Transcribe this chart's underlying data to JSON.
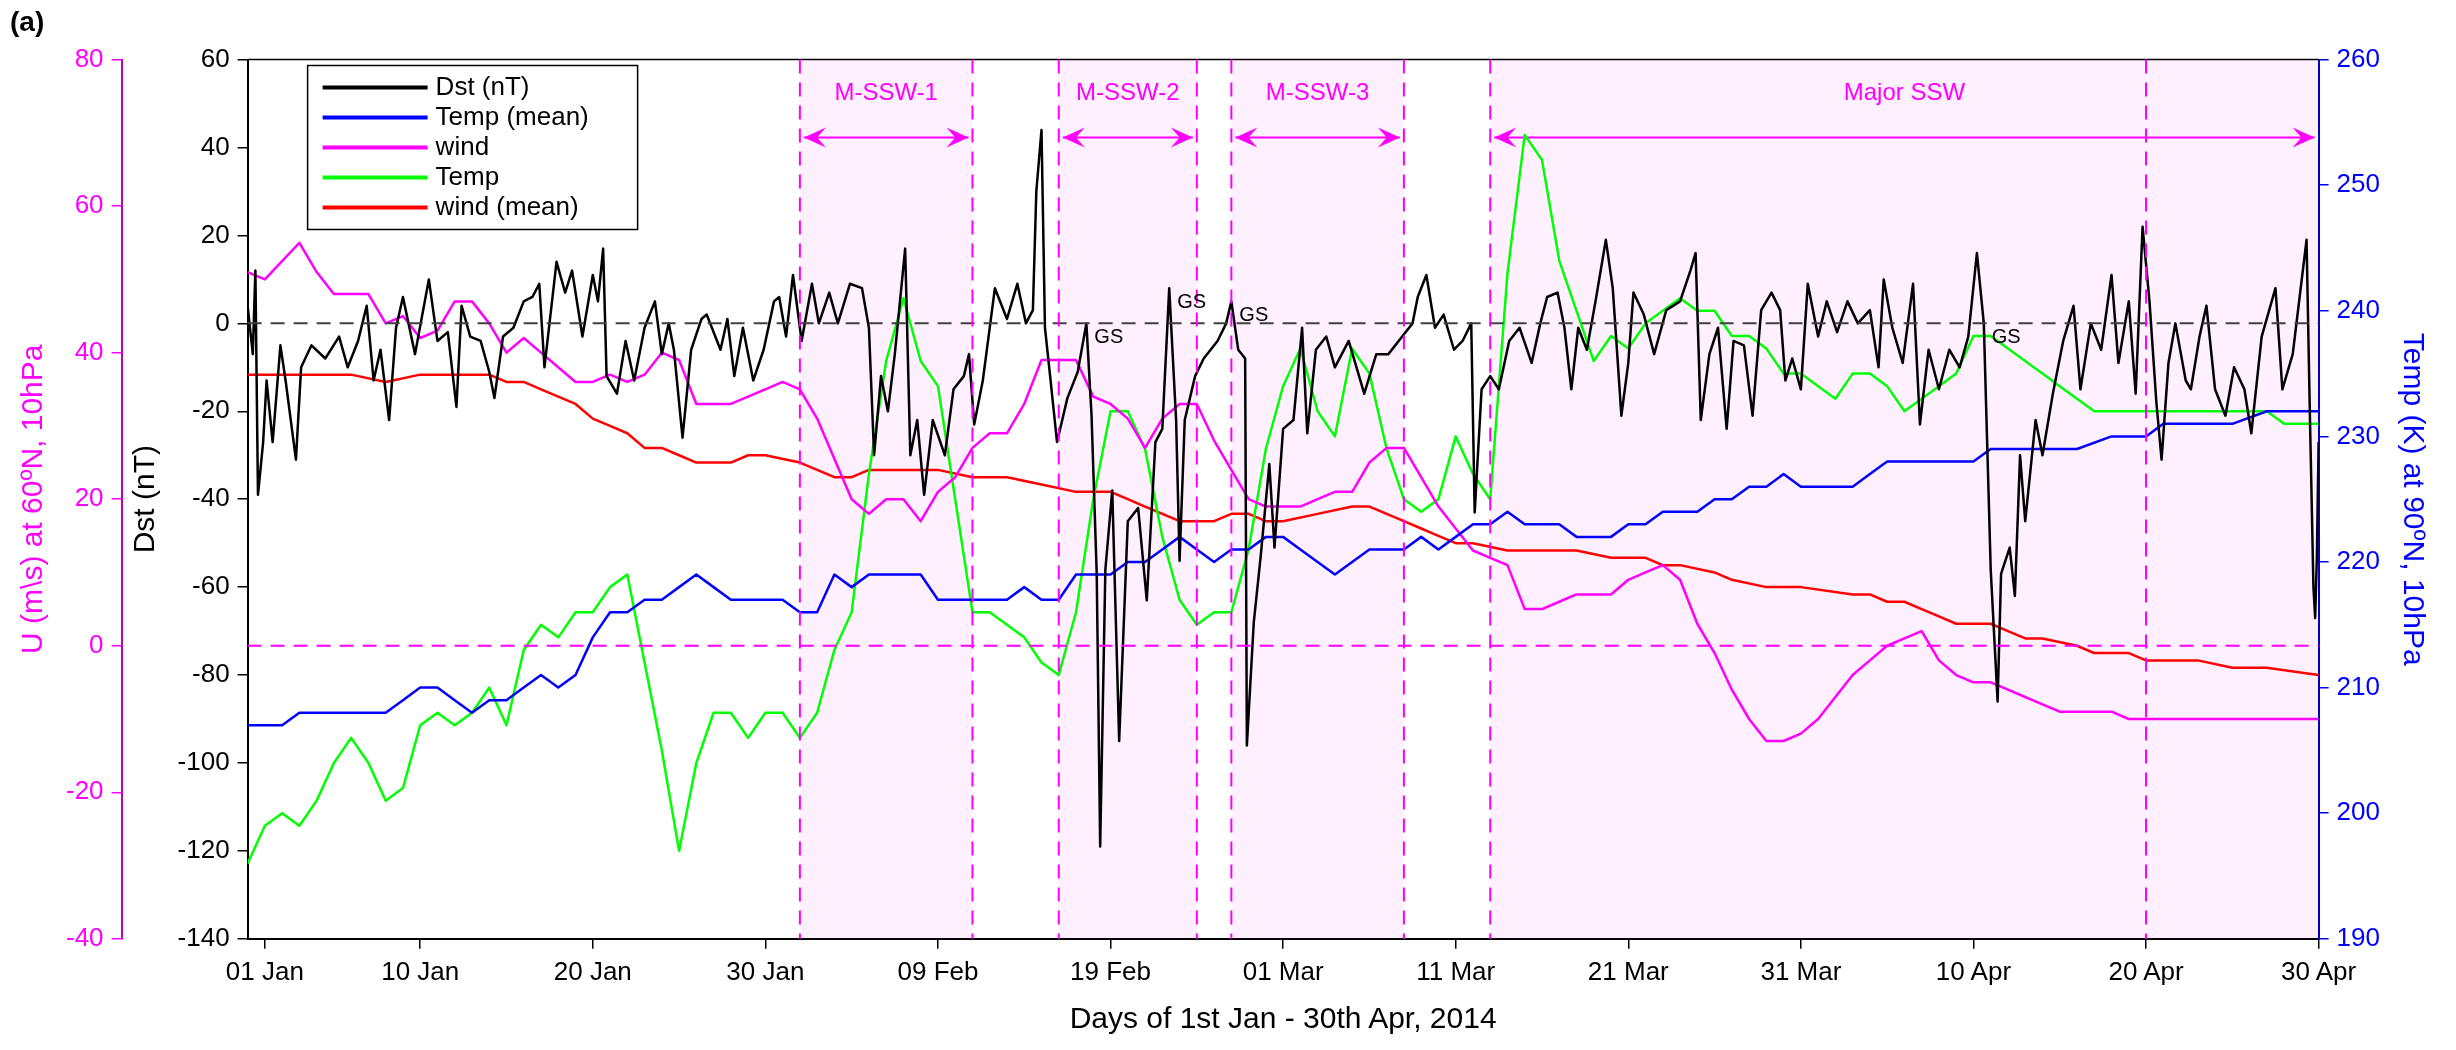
{
  "chart_data": {
    "type": "line",
    "title": "(a)",
    "xlabel": "Days of 1st Jan - 30th Apr, 2014",
    "ylabel": "Dst (nT)",
    "y2label": "Temp (K) at 90ºN, 10hPa",
    "y3label": "U (m\\s) at 60ºN, 10hPa",
    "xlim": [
      "2013-12-31",
      "2014-04-30"
    ],
    "xticks": [
      {
        "value": "2014-01-01",
        "label": "01 Jan"
      },
      {
        "value": "2014-01-10",
        "label": "10 Jan"
      },
      {
        "value": "2014-01-20",
        "label": "20 Jan"
      },
      {
        "value": "2014-01-30",
        "label": "30 Jan"
      },
      {
        "value": "2014-02-09",
        "label": "09 Feb"
      },
      {
        "value": "2014-02-19",
        "label": "19 Feb"
      },
      {
        "value": "2014-03-01",
        "label": "01 Mar"
      },
      {
        "value": "2014-03-11",
        "label": "11 Mar"
      },
      {
        "value": "2014-03-21",
        "label": "21 Mar"
      },
      {
        "value": "2014-03-31",
        "label": "31 Mar"
      },
      {
        "value": "2014-04-10",
        "label": "10 Apr"
      },
      {
        "value": "2014-04-20",
        "label": "20 Apr"
      },
      {
        "value": "2014-04-30",
        "label": "30 Apr"
      }
    ],
    "ylim": [
      -140,
      60
    ],
    "yticks": [
      -140,
      -120,
      -100,
      -80,
      -60,
      -40,
      -20,
      0,
      20,
      40,
      60
    ],
    "y2lim": [
      190,
      260
    ],
    "y2ticks": [
      190,
      200,
      210,
      220,
      230,
      240,
      250,
      260
    ],
    "y3lim": [
      -40,
      80
    ],
    "y3ticks": [
      -40,
      -20,
      0,
      20,
      40,
      60,
      80
    ],
    "legend": "top left",
    "x": [
      "2013-12-31",
      "2014-01-01",
      "2014-01-02",
      "2014-01-03",
      "2014-01-04",
      "2014-01-05",
      "2014-01-06",
      "2014-01-07",
      "2014-01-08",
      "2014-01-09",
      "2014-01-10",
      "2014-01-11",
      "2014-01-12",
      "2014-01-13",
      "2014-01-14",
      "2014-01-15",
      "2014-01-16",
      "2014-01-17",
      "2014-01-18",
      "2014-01-19",
      "2014-01-20",
      "2014-01-21",
      "2014-01-22",
      "2014-01-23",
      "2014-01-24",
      "2014-01-25",
      "2014-01-26",
      "2014-01-27",
      "2014-01-28",
      "2014-01-29",
      "2014-01-30",
      "2014-01-31",
      "2014-02-01",
      "2014-02-02",
      "2014-02-03",
      "2014-02-04",
      "2014-02-05",
      "2014-02-06",
      "2014-02-07",
      "2014-02-08",
      "2014-02-09",
      "2014-02-10",
      "2014-02-11",
      "2014-02-12",
      "2014-02-13",
      "2014-02-14",
      "2014-02-15",
      "2014-02-16",
      "2014-02-17",
      "2014-02-18",
      "2014-02-19",
      "2014-02-20",
      "2014-02-21",
      "2014-02-22",
      "2014-02-23",
      "2014-02-24",
      "2014-02-25",
      "2014-02-26",
      "2014-02-27",
      "2014-02-28",
      "2014-03-01",
      "2014-03-02",
      "2014-03-03",
      "2014-03-04",
      "2014-03-05",
      "2014-03-06",
      "2014-03-07",
      "2014-03-08",
      "2014-03-09",
      "2014-03-10",
      "2014-03-11",
      "2014-03-12",
      "2014-03-13",
      "2014-03-14",
      "2014-03-15",
      "2014-03-16",
      "2014-03-17",
      "2014-03-18",
      "2014-03-19",
      "2014-03-20",
      "2014-03-21",
      "2014-03-22",
      "2014-03-23",
      "2014-03-24",
      "2014-03-25",
      "2014-03-26",
      "2014-03-27",
      "2014-03-28",
      "2014-03-29",
      "2014-03-30",
      "2014-03-31",
      "2014-04-01",
      "2014-04-02",
      "2014-04-03",
      "2014-04-04",
      "2014-04-05",
      "2014-04-06",
      "2014-04-07",
      "2014-04-08",
      "2014-04-09",
      "2014-04-10",
      "2014-04-11",
      "2014-04-12",
      "2014-04-13",
      "2014-04-14",
      "2014-04-15",
      "2014-04-16",
      "2014-04-17",
      "2014-04-18",
      "2014-04-19",
      "2014-04-20",
      "2014-04-21",
      "2014-04-22",
      "2014-04-23",
      "2014-04-24",
      "2014-04-25",
      "2014-04-26",
      "2014-04-27",
      "2014-04-28",
      "2014-04-29",
      "2014-04-30"
    ],
    "series": [
      {
        "name": "Dst (nT)",
        "color": "#000000",
        "axis": "y",
        "x": [
          "2013-12-31",
          "2013-12-31T07:12",
          "2013-12-31T10:48",
          "2013-12-31T14:24",
          "2013-12-31T21:36",
          "2014-01-01T02:24",
          "2014-01-01T10:48",
          "2014-01-01T21:36",
          "2014-01-02T04:48",
          "2014-01-02T19:12",
          "2014-01-03T02:24",
          "2014-01-03T16:48",
          "2014-01-04T12:00",
          "2014-01-05T07:12",
          "2014-01-05T19:12",
          "2014-01-06T09:36",
          "2014-01-06T21:36",
          "2014-01-07T07:12",
          "2014-01-07T16:48",
          "2014-01-08T04:48",
          "2014-01-08T14:24",
          "2014-01-09",
          "2014-01-09T16:48",
          "2014-01-10T12:00",
          "2014-01-11",
          "2014-01-11T14:24",
          "2014-01-12T02:24",
          "2014-01-12T09:36",
          "2014-01-12T21:36",
          "2014-01-13T12:00",
          "2014-01-14",
          "2014-01-14T07:12",
          "2014-01-14T19:12",
          "2014-01-15T09:36",
          "2014-01-16",
          "2014-01-16T12:00",
          "2014-01-16T21:36",
          "2014-01-17T04:48",
          "2014-01-17T21:36",
          "2014-01-18T09:36",
          "2014-01-18T19:12",
          "2014-01-19T09:36",
          "2014-01-20",
          "2014-01-20T07:12",
          "2014-01-20T14:24",
          "2014-01-20T19:12",
          "2014-01-21T09:36",
          "2014-01-21T21:36",
          "2014-01-22T09:36",
          "2014-01-23",
          "2014-01-23T14:24",
          "2014-01-24",
          "2014-01-24T09:36",
          "2014-01-24T16:48",
          "2014-01-25T04:48",
          "2014-01-25T16:48",
          "2014-01-26T07:12",
          "2014-01-26T14:24",
          "2014-01-27T09:36",
          "2014-01-27T19:12",
          "2014-01-28T04:48",
          "2014-01-28T16:48",
          "2014-01-29T07:12",
          "2014-01-29T21:36",
          "2014-01-30T12:00",
          "2014-01-30T19:12",
          "2014-01-31T04:48",
          "2014-01-31T14:24",
          "2014-02-01T02:24",
          "2014-02-01T16:48",
          "2014-02-02T02:24",
          "2014-02-02T16:48",
          "2014-02-03T04:48",
          "2014-02-03T21:36",
          "2014-02-04T14:24",
          "2014-02-05",
          "2014-02-05T07:12",
          "2014-02-05T16:48",
          "2014-02-06T02:24",
          "2014-02-06T12:00",
          "2014-02-07T02:24",
          "2014-02-07T09:36",
          "2014-02-07T19:12",
          "2014-02-08T04:48",
          "2014-02-08T16:48",
          "2014-02-09T09:36",
          "2014-02-09T21:36",
          "2014-02-10T12:00",
          "2014-02-10T19:12",
          "2014-02-11T02:24",
          "2014-02-11T14:24",
          "2014-02-12T07:12",
          "2014-02-13",
          "2014-02-13T14:24",
          "2014-02-14T02:24",
          "2014-02-14T12:00",
          "2014-02-14T16:48",
          "2014-02-15",
          "2014-02-15T04:48",
          "2014-02-15T12:00",
          "2014-02-15T21:36",
          "2014-02-16T12:00",
          "2014-02-17T02:24",
          "2014-02-17T14:24",
          "2014-02-17T21:36",
          "2014-02-18T04:48",
          "2014-02-18T09:36",
          "2014-02-18T16:48",
          "2014-02-19T02:24",
          "2014-02-19T12:00",
          "2014-02-20",
          "2014-02-20T14:24",
          "2014-02-21T02:24",
          "2014-02-21T14:24",
          "2014-02-22",
          "2014-02-22T09:36",
          "2014-02-22T19:12",
          "2014-02-23",
          "2014-02-23T07:12",
          "2014-02-23T21:36",
          "2014-02-24T09:36",
          "2014-02-25T04:48",
          "2014-02-25T16:48",
          "2014-02-26",
          "2014-02-26T09:36",
          "2014-02-26T19:12",
          "2014-02-26T21:36",
          "2014-02-27T07:12",
          "2014-02-27T16:48",
          "2014-02-28T04:48",
          "2014-02-28T12:00",
          "2014-03-01",
          "2014-03-01T14:24",
          "2014-03-02T02:24",
          "2014-03-02T09:36",
          "2014-03-02T21:36",
          "2014-03-03T12:00",
          "2014-03-04",
          "2014-03-04T19:12",
          "2014-03-05T16:48",
          "2014-03-06T09:36",
          "2014-03-07T02:24",
          "2014-03-07T21:36",
          "2014-03-08T12:00",
          "2014-03-08T19:12",
          "2014-03-09T07:12",
          "2014-03-09T19:12",
          "2014-03-10T07:12",
          "2014-03-10T21:36",
          "2014-03-11T09:36",
          "2014-03-11T21:36",
          "2014-03-12T02:24",
          "2014-03-12T12:00",
          "2014-03-13",
          "2014-03-13T12:00",
          "2014-03-14T02:24",
          "2014-03-14T16:48",
          "2014-03-15T09:36",
          "2014-03-15T21:36",
          "2014-03-16T07:12",
          "2014-03-16T21:36",
          "2014-03-17T07:12",
          "2014-03-17T16:48",
          "2014-03-18T02:24",
          "2014-03-18T14:24",
          "2014-03-19T02:24",
          "2014-03-19T16:48",
          "2014-03-20T02:24",
          "2014-03-20T14:24",
          "2014-03-21",
          "2014-03-21T07:12",
          "2014-03-21T21:36",
          "2014-03-22T12:00",
          "2014-03-23T04:48",
          "2014-03-24",
          "2014-03-24T14:24",
          "2014-03-24T21:36",
          "2014-03-25T04:48",
          "2014-03-25T16:48",
          "2014-03-26T04:48",
          "2014-03-26T16:48",
          "2014-03-27T02:24",
          "2014-03-27T16:48",
          "2014-03-28T04:48",
          "2014-03-28T16:48",
          "2014-03-29T07:12",
          "2014-03-29T19:12",
          "2014-03-30T02:24",
          "2014-03-30T12:00",
          "2014-03-31",
          "2014-03-31T09:36",
          "2014-04-01",
          "2014-04-01T12:00",
          "2014-04-02T02:24",
          "2014-04-02T16:48",
          "2014-04-03T07:12",
          "2014-04-04",
          "2014-04-04T12:00",
          "2014-04-04T19:12",
          "2014-04-05T07:12",
          "2014-04-05T21:36",
          "2014-04-06T12:00",
          "2014-04-06T21:36",
          "2014-04-07T09:36",
          "2014-04-08",
          "2014-04-08T14:24",
          "2014-04-09T04:48",
          "2014-04-09T16:48",
          "2014-04-10T04:48",
          "2014-04-10T14:24",
          "2014-04-11",
          "2014-04-11T09:36",
          "2014-04-11T14:24",
          "2014-04-12T02:24",
          "2014-04-12T09:36",
          "2014-04-12T16:48",
          "2014-04-13",
          "2014-04-13T14:24",
          "2014-04-14",
          "2014-04-14T14:24",
          "2014-04-15T04:48",
          "2014-04-15T19:12",
          "2014-04-16T04:48",
          "2014-04-16T19:12",
          "2014-04-17T09:36",
          "2014-04-18",
          "2014-04-18T09:36",
          "2014-04-19",
          "2014-04-19T09:36",
          "2014-04-19T19:12",
          "2014-04-20T04:48",
          "2014-04-20T14:24",
          "2014-04-20T21:36",
          "2014-04-21T07:12",
          "2014-04-21T16:48",
          "2014-04-22T07:12",
          "2014-04-22T14:24",
          "2014-04-23T02:24",
          "2014-04-23T12:00",
          "2014-04-24",
          "2014-04-24T14:24",
          "2014-04-25T02:24",
          "2014-04-25T16:48",
          "2014-04-26T02:24",
          "2014-04-26T16:48",
          "2014-04-27T12:00",
          "2014-04-27T21:36",
          "2014-04-28T12:00",
          "2014-04-28T21:36",
          "2014-04-29T07:12",
          "2014-04-29T12:00",
          "2014-04-29T16:48",
          "2014-04-29T19:12",
          "2014-04-29T21:36",
          "2014-04-30"
        ],
        "values": [
          4,
          -7,
          12,
          -39,
          -27,
          -13,
          -27,
          -5,
          -13,
          -31,
          -10,
          -5,
          -8,
          -3,
          -10,
          -4,
          4,
          -13,
          -6,
          -22,
          -1,
          6,
          -7,
          10,
          -4,
          -2,
          -19,
          4,
          -3,
          -4,
          -11,
          -17,
          -3,
          -1,
          5,
          6,
          9,
          -10,
          14,
          7,
          12,
          -3,
          11,
          5,
          17,
          -12,
          -16,
          -4,
          -13,
          -1,
          5,
          -7,
          0,
          -6,
          -26,
          -6,
          1,
          2,
          -6,
          1,
          -12,
          -1,
          -13,
          -6,
          5,
          6,
          -3,
          11,
          -4,
          9,
          0,
          7,
          0,
          9,
          8,
          -1,
          -30,
          -12,
          -20,
          -7,
          17,
          -30,
          -22,
          -39,
          -22,
          -30,
          -15,
          -12,
          -7,
          -23,
          -13,
          8,
          1,
          9,
          0,
          3,
          30,
          44,
          -1,
          -12,
          -27,
          -17,
          -11,
          0,
          -21,
          -57,
          -119,
          -56,
          -38,
          -95,
          -45,
          -42,
          -63,
          -27,
          -24,
          8,
          -22,
          -54,
          -22,
          -12,
          -8,
          -4,
          0,
          5,
          -6,
          -8,
          -96,
          -68,
          -53,
          -32,
          -51,
          -24,
          -22,
          -1,
          -25,
          -6,
          -3,
          -10,
          -4,
          -16,
          -7,
          -7,
          -3,
          0,
          6,
          11,
          -1,
          2,
          -6,
          -4,
          0,
          -43,
          -15,
          -12,
          -15,
          -4,
          -1,
          -9,
          0,
          6,
          7,
          -1,
          -15,
          -1,
          -6,
          5,
          19,
          8,
          -21,
          -9,
          7,
          2,
          -7,
          3,
          5,
          12,
          16,
          -22,
          -7,
          -1,
          -24,
          -4,
          -5,
          -21,
          3,
          7,
          3,
          -13,
          -8,
          -15,
          9,
          -3,
          5,
          -2,
          5,
          0,
          3,
          -10,
          10,
          -1,
          -9,
          9,
          -23,
          -6,
          -15,
          -6,
          -10,
          -3,
          16,
          0,
          -56,
          -86,
          -57,
          -51,
          -62,
          -30,
          -45,
          -22,
          -30,
          -16,
          -4,
          4,
          -15,
          0,
          -6,
          11,
          -9,
          5,
          -16,
          22,
          5,
          -18,
          -31,
          -9,
          0,
          -13,
          -15,
          -3,
          4,
          -15,
          -21,
          -10,
          -15,
          -25,
          -3,
          8,
          -15,
          -7,
          6,
          19,
          -22,
          -60,
          -67,
          -53,
          -27
        ]
      },
      {
        "name": "Temp (mean)",
        "color": "#0000ff",
        "axis": "y2",
        "x": [
          "2013-12-31",
          "2014-01-01",
          "2014-01-02",
          "2014-01-03",
          "2014-01-04",
          "2014-01-05",
          "2014-01-06",
          "2014-01-07",
          "2014-01-08",
          "2014-01-09",
          "2014-01-10",
          "2014-01-11",
          "2014-01-12",
          "2014-01-13",
          "2014-01-14",
          "2014-01-15",
          "2014-01-16",
          "2014-01-17",
          "2014-01-18",
          "2014-01-19",
          "2014-01-20",
          "2014-01-21",
          "2014-01-22",
          "2014-01-23",
          "2014-01-24",
          "2014-01-25",
          "2014-01-26",
          "2014-01-27",
          "2014-01-28",
          "2014-01-29",
          "2014-01-30",
          "2014-01-31",
          "2014-02-01",
          "2014-02-02",
          "2014-02-03",
          "2014-02-04",
          "2014-02-05",
          "2014-02-06",
          "2014-02-07",
          "2014-02-08",
          "2014-02-09",
          "2014-02-10",
          "2014-02-11",
          "2014-02-12",
          "2014-02-13",
          "2014-02-14",
          "2014-02-15",
          "2014-02-16",
          "2014-02-17",
          "2014-02-18",
          "2014-02-19",
          "2014-02-20",
          "2014-02-21",
          "2014-02-22",
          "2014-02-23",
          "2014-02-24",
          "2014-02-25",
          "2014-02-26",
          "2014-02-27",
          "2014-02-28",
          "2014-03-01",
          "2014-03-02",
          "2014-03-03",
          "2014-03-04",
          "2014-03-05",
          "2014-03-06",
          "2014-03-07",
          "2014-03-08",
          "2014-03-09",
          "2014-03-10",
          "2014-03-11",
          "2014-03-12",
          "2014-03-13",
          "2014-03-14",
          "2014-03-15",
          "2014-03-16",
          "2014-03-17",
          "2014-03-18",
          "2014-03-19",
          "2014-03-20",
          "2014-03-21",
          "2014-03-22",
          "2014-03-23",
          "2014-03-24",
          "2014-03-25",
          "2014-03-26",
          "2014-03-27",
          "2014-03-28",
          "2014-03-29",
          "2014-03-30",
          "2014-03-31",
          "2014-04-02",
          "2014-04-03",
          "2014-04-04",
          "2014-04-05",
          "2014-04-06",
          "2014-04-07",
          "2014-04-08",
          "2014-04-09",
          "2014-04-10",
          "2014-04-11",
          "2014-04-12",
          "2014-04-13",
          "2014-04-14",
          "2014-04-15",
          "2014-04-16",
          "2014-04-18",
          "2014-04-19",
          "2014-04-20",
          "2014-04-21",
          "2014-04-23",
          "2014-04-24",
          "2014-04-25",
          "2014-04-27",
          "2014-04-30"
        ],
        "values": [
          207,
          207,
          207,
          208,
          208,
          208,
          208,
          208,
          208,
          209,
          210,
          210,
          209,
          208,
          209,
          209,
          210,
          211,
          210,
          211,
          214,
          216,
          216,
          217,
          217,
          218,
          219,
          218,
          217,
          217,
          217,
          217,
          216,
          216,
          219,
          218,
          219,
          219,
          219,
          219,
          217,
          217,
          217,
          217,
          217,
          218,
          217,
          217,
          219,
          219,
          219,
          220,
          220,
          221,
          222,
          221,
          220,
          221,
          221,
          222,
          222,
          221,
          220,
          219,
          220,
          221,
          221,
          221,
          222,
          221,
          222,
          223,
          223,
          224,
          223,
          223,
          223,
          222,
          222,
          222,
          223,
          223,
          224,
          224,
          224,
          225,
          225,
          226,
          226,
          227,
          226,
          226,
          226,
          227,
          228,
          228,
          228,
          228,
          228,
          228,
          229,
          229,
          229,
          229,
          229,
          229,
          230,
          230,
          230,
          231,
          231,
          231,
          231,
          232,
          232
        ]
      },
      {
        "name": "wind",
        "color": "#ff00ff",
        "axis": "y3",
        "x": [
          "2013-12-31",
          "2014-01-01",
          "2014-01-03",
          "2014-01-04",
          "2014-01-05",
          "2014-01-06",
          "2014-01-07",
          "2014-01-08",
          "2014-01-09",
          "2014-01-10",
          "2014-01-11",
          "2014-01-12",
          "2014-01-13",
          "2014-01-14",
          "2014-01-15",
          "2014-01-16",
          "2014-01-17",
          "2014-01-18",
          "2014-01-19",
          "2014-01-20",
          "2014-01-21",
          "2014-01-22",
          "2014-01-23",
          "2014-01-24",
          "2014-01-25",
          "2014-01-26",
          "2014-01-28",
          "2014-01-29",
          "2014-01-30",
          "2014-01-31",
          "2014-02-01",
          "2014-02-02",
          "2014-02-04",
          "2014-02-05",
          "2014-02-06",
          "2014-02-07",
          "2014-02-08",
          "2014-02-09",
          "2014-02-10",
          "2014-02-11",
          "2014-02-12",
          "2014-02-13",
          "2014-02-14",
          "2014-02-15",
          "2014-02-17",
          "2014-02-18",
          "2014-02-19",
          "2014-02-20",
          "2014-02-21",
          "2014-02-22",
          "2014-02-23",
          "2014-02-24",
          "2014-02-25",
          "2014-02-26",
          "2014-02-27",
          "2014-02-28",
          "2014-03-01",
          "2014-03-02",
          "2014-03-03",
          "2014-03-04",
          "2014-03-05",
          "2014-03-06",
          "2014-03-07",
          "2014-03-08",
          "2014-03-09",
          "2014-03-10",
          "2014-03-11",
          "2014-03-12",
          "2014-03-13",
          "2014-03-14",
          "2014-03-15",
          "2014-03-16",
          "2014-03-17",
          "2014-03-18",
          "2014-03-20",
          "2014-03-21",
          "2014-03-22",
          "2014-03-23",
          "2014-03-24",
          "2014-03-25",
          "2014-03-26",
          "2014-03-27",
          "2014-03-28",
          "2014-03-29",
          "2014-03-30",
          "2014-03-31",
          "2014-04-01",
          "2014-04-02",
          "2014-04-03",
          "2014-04-04",
          "2014-04-05",
          "2014-04-06",
          "2014-04-07",
          "2014-04-08",
          "2014-04-09",
          "2014-04-10",
          "2014-04-11",
          "2014-04-12",
          "2014-04-13",
          "2014-04-14",
          "2014-04-15",
          "2014-04-16",
          "2014-04-17",
          "2014-04-18",
          "2014-04-19",
          "2014-04-20",
          "2014-04-21",
          "2014-04-22",
          "2014-04-23",
          "2014-04-24",
          "2014-04-25",
          "2014-04-26",
          "2014-04-27",
          "2014-04-29",
          "2014-04-30"
        ],
        "values": [
          51,
          50,
          55,
          51,
          48,
          48,
          48,
          44,
          45,
          42,
          43,
          47,
          47,
          44,
          40,
          42,
          40,
          38,
          36,
          36,
          37,
          36,
          37,
          40,
          39,
          33,
          33,
          34,
          35,
          36,
          35,
          31,
          20,
          18,
          20,
          20,
          17,
          21,
          23,
          27,
          29,
          29,
          33,
          39,
          39,
          34,
          33,
          31,
          27,
          31,
          33,
          33,
          28,
          24,
          20,
          19,
          19,
          19,
          20,
          21,
          21,
          25,
          27,
          27,
          23,
          19,
          16,
          13,
          12,
          11,
          5,
          5,
          6,
          7,
          7,
          9,
          10,
          11,
          9,
          3,
          -1,
          -6,
          -10,
          -13,
          -13,
          -12,
          -10,
          -7,
          -4,
          -2,
          0,
          1,
          2,
          -2,
          -4,
          -5,
          -5,
          -6,
          -7,
          -8,
          -9,
          -9,
          -9,
          -9,
          -10,
          -10,
          -10,
          -10,
          -10,
          -10,
          -10,
          -10,
          -10,
          -10,
          -10
        ]
      },
      {
        "name": "Temp",
        "color": "#00ff00",
        "axis": "y2",
        "values": [
          196,
          199,
          200,
          199,
          201,
          204,
          206,
          204,
          201,
          202,
          207,
          208,
          207,
          208,
          210,
          207,
          213,
          215,
          214,
          216,
          216,
          218,
          219,
          212,
          205,
          197,
          204,
          208,
          208,
          206,
          208,
          208,
          206,
          208,
          213,
          216,
          227,
          236,
          241,
          236,
          234,
          225,
          216,
          216,
          215,
          214,
          212,
          211,
          216,
          225,
          232,
          232,
          229,
          222,
          217,
          215,
          216,
          216,
          221,
          229,
          234,
          237,
          232,
          230,
          237,
          235,
          229,
          225,
          224,
          225,
          230,
          227,
          225,
          243,
          254,
          252,
          244,
          240,
          236,
          238,
          237,
          239,
          240,
          241,
          240,
          240,
          238,
          238,
          237,
          235,
          235,
          234,
          233,
          235,
          235,
          234,
          232,
          233,
          234,
          235,
          238,
          238,
          237,
          236,
          235,
          234,
          233,
          232,
          232,
          232,
          232,
          232,
          232,
          232,
          232,
          232,
          232,
          232,
          231,
          231,
          231
        ]
      },
      {
        "name": "wind (mean)",
        "color": "#ff0000",
        "axis": "y3",
        "x": [
          "2013-12-31",
          "2014-01-01",
          "2014-01-03",
          "2014-01-04",
          "2014-01-06",
          "2014-01-08",
          "2014-01-10",
          "2014-01-12",
          "2014-01-14",
          "2014-01-15",
          "2014-01-16",
          "2014-01-17",
          "2014-01-18",
          "2014-01-19",
          "2014-01-20",
          "2014-01-21",
          "2014-01-22",
          "2014-01-23",
          "2014-01-24",
          "2014-01-25",
          "2014-01-26",
          "2014-01-28",
          "2014-01-29",
          "2014-01-30",
          "2014-02-01",
          "2014-02-02",
          "2014-02-03",
          "2014-02-04",
          "2014-02-05",
          "2014-02-07",
          "2014-02-08",
          "2014-02-09",
          "2014-02-11",
          "2014-02-12",
          "2014-02-13",
          "2014-02-15",
          "2014-02-17",
          "2014-02-19",
          "2014-02-20",
          "2014-02-21",
          "2014-02-23",
          "2014-02-24",
          "2014-02-25",
          "2014-02-26",
          "2014-02-27",
          "2014-02-28",
          "2014-03-01",
          "2014-03-03",
          "2014-03-05",
          "2014-03-06",
          "2014-03-07",
          "2014-03-08",
          "2014-03-09",
          "2014-03-10",
          "2014-03-11",
          "2014-03-12",
          "2014-03-14",
          "2014-03-16",
          "2014-03-18",
          "2014-03-20",
          "2014-03-21",
          "2014-03-22",
          "2014-03-23",
          "2014-03-24",
          "2014-03-26",
          "2014-03-27",
          "2014-03-29",
          "2014-03-30",
          "2014-03-31",
          "2014-04-03",
          "2014-04-04",
          "2014-04-05",
          "2014-04-06",
          "2014-04-07",
          "2014-04-08",
          "2014-04-09",
          "2014-04-11",
          "2014-04-12",
          "2014-04-13",
          "2014-04-14",
          "2014-04-16",
          "2014-04-17",
          "2014-04-18",
          "2014-04-19",
          "2014-04-20",
          "2014-04-22",
          "2014-04-23",
          "2014-04-25",
          "2014-04-27",
          "2014-04-30"
        ],
        "values": [
          37,
          37,
          37,
          37,
          37,
          36,
          37,
          37,
          37,
          36,
          36,
          35,
          34,
          33,
          31,
          30,
          29,
          27,
          27,
          26,
          25,
          25,
          26,
          26,
          25,
          24,
          23,
          23,
          24,
          24,
          24,
          24,
          23,
          23,
          23,
          22,
          21,
          21,
          20,
          19,
          17,
          17,
          17,
          18,
          18,
          17,
          17,
          18,
          19,
          19,
          18,
          17,
          16,
          15,
          14,
          14,
          13,
          13,
          13,
          12,
          12,
          12,
          11,
          11,
          10,
          9,
          8,
          8,
          8,
          7,
          7,
          6,
          6,
          5,
          4,
          3,
          3,
          2,
          1,
          1,
          0,
          -1,
          -1,
          -1,
          -2,
          -2,
          -2,
          -3,
          -3,
          -4
        ]
      }
    ],
    "ref_lines": [
      {
        "axis": "y",
        "value": 0,
        "label": null,
        "color": "#404040",
        "line_style": "dashed"
      },
      {
        "axis": "y3",
        "value": 0,
        "label": null,
        "color": "#ff00ff",
        "line_style": "dashed"
      },
      {
        "axis": "x",
        "value": "2014-02-01",
        "label": null,
        "color": "#ff00ff",
        "line_style": "dashed"
      },
      {
        "axis": "x",
        "value": "2014-02-11",
        "label": null,
        "color": "#ff00ff",
        "line_style": "dashed"
      },
      {
        "axis": "x",
        "value": "2014-02-16",
        "label": null,
        "color": "#ff00ff",
        "line_style": "dashed"
      },
      {
        "axis": "x",
        "value": "2014-02-24",
        "label": null,
        "color": "#ff00ff",
        "line_style": "dashed"
      },
      {
        "axis": "x",
        "value": "2014-02-26",
        "label": null,
        "color": "#ff00ff",
        "line_style": "dashed"
      },
      {
        "axis": "x",
        "value": "2014-03-08",
        "label": null,
        "color": "#ff00ff",
        "line_style": "dashed"
      },
      {
        "axis": "x",
        "value": "2014-03-13",
        "label": null,
        "color": "#ff00ff",
        "line_style": "dashed"
      },
      {
        "axis": "x",
        "value": "2014-04-20",
        "label": null,
        "color": "#ff00ff",
        "line_style": "dashed"
      }
    ],
    "bands": [
      {
        "axis": "x",
        "from": "2014-02-01",
        "to": "2014-02-11",
        "label": "M-SSW-1",
        "color": "#ff00ff"
      },
      {
        "axis": "x",
        "from": "2014-02-16",
        "to": "2014-02-24",
        "label": "M-SSW-2",
        "color": "#ff00ff"
      },
      {
        "axis": "x",
        "from": "2014-02-26",
        "to": "2014-03-08",
        "label": "M-SSW-3",
        "color": "#ff00ff"
      },
      {
        "axis": "x",
        "from": "2014-03-13",
        "to": "2014-04-30",
        "label": "Major SSW",
        "color": "#ff00ff"
      }
    ],
    "annotations": [
      {
        "text": "GS",
        "x": "2014-02-17T14:24",
        "y": 0
      },
      {
        "text": "GS",
        "x": "2014-02-22T09:36",
        "y": 8
      },
      {
        "text": "GS",
        "x": "2014-02-26",
        "y": 5
      },
      {
        "text": "GS",
        "x": "2014-04-10T14:24",
        "y": 0
      }
    ]
  }
}
